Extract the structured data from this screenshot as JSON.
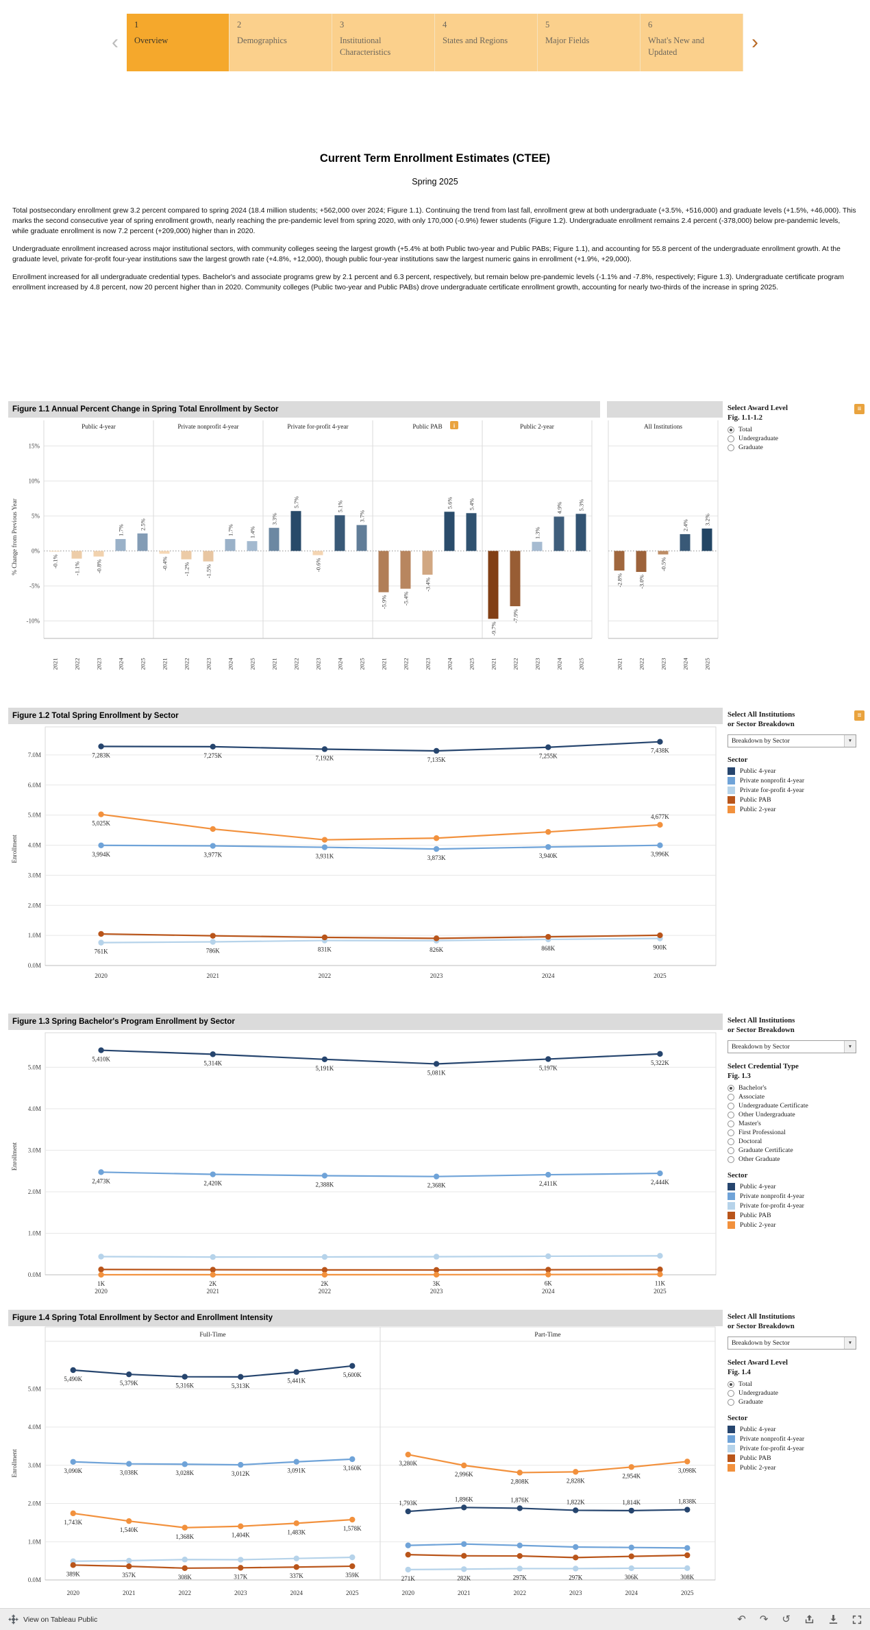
{
  "nav": {
    "prev_label": "‹",
    "next_label": "›",
    "tabs": [
      {
        "number": "1",
        "label": "Overview",
        "active": true
      },
      {
        "number": "2",
        "label": "Demographics",
        "active": false
      },
      {
        "number": "3",
        "label": "Institutional Characteristics",
        "active": false
      },
      {
        "number": "4",
        "label": "States and Regions",
        "active": false
      },
      {
        "number": "5",
        "label": "Major Fields",
        "active": false
      },
      {
        "number": "6",
        "label": "What's New and Updated",
        "active": false
      }
    ]
  },
  "header": {
    "title": "Current Term Enrollment Estimates (CTEE)",
    "subtitle": "Spring 2025"
  },
  "paragraphs": [
    "Total postsecondary enrollment grew 3.2 percent compared to spring 2024 (18.4 million students; +562,000 over 2024; Figure 1.1). Continuing the trend from last fall, enrollment grew at both undergraduate (+3.5%, +516,000) and graduate levels (+1.5%, +46,000). This marks the second consecutive year of spring enrollment growth, nearly reaching the pre-pandemic level from spring 2020, with only 170,000 (-0.9%) fewer students (Figure 1.2). Undergraduate enrollment remains 2.4 percent (-378,000) below pre-pandemic levels, while graduate enrollment is now 7.2 percent (+209,000) higher than in 2020.",
    "Undergraduate enrollment increased across major institutional sectors, with community colleges seeing the largest growth (+5.4% at both Public two-year and Public PABs; Figure 1.1), and accounting for 55.8 percent of the undergraduate enrollment growth. At the graduate level, private for-profit four-year institutions saw the largest growth rate (+4.8%, +12,000), though public four-year institutions saw the largest numeric gains in enrollment (+1.9%, +29,000).",
    "Enrollment increased for all undergraduate credential types. Bachelor's and associate programs grew by 2.1 percent and 6.3 percent, respectively, but remain below pre-pandemic levels (-1.1% and -7.8%, respectively; Figure 1.3). Undergraduate certificate program enrollment increased by 4.8 percent, now 20 percent higher than in 2020. Community colleges (Public two-year and Public PABs) drove undergraduate certificate enrollment growth, accounting for nearly two-thirds of the increase in spring 2025."
  ],
  "colors": {
    "accent_orange": "#F5A82C",
    "tab_inactive": "#FBD08C",
    "titlebar_gray": "#DBDBDB",
    "sector": {
      "Public 4-year": "#26456E",
      "Private nonprofit 4-year": "#6FA3D8",
      "Private for-profit 4-year": "#B6D3EA",
      "Public PAB": "#B9551A",
      "Public 2-year": "#F2913D"
    }
  },
  "controls": {
    "fig11": {
      "title_line1": "Select Award Level",
      "title_line2": "Fig. 1.1-1.2",
      "options": [
        "Total",
        "Undergraduate",
        "Graduate"
      ],
      "selected": "Total"
    },
    "fig12": {
      "title_line1": "Select All Institutions",
      "title_line2": "or Sector Breakdown",
      "dropdown_value": "Breakdown by Sector",
      "legend_title": "Sector"
    },
    "fig13": {
      "title_line1": "Select All Institutions",
      "title_line2": "or Sector Breakdown",
      "dropdown_value": "Breakdown by Sector",
      "credential_title_line1": "Select Credential Type",
      "credential_title_line2": "Fig. 1.3",
      "credential_options": [
        "Bachelor's",
        "Associate",
        "Undergraduate Certificate",
        "Other Undergraduate",
        "Master's",
        "First Professional",
        "Doctoral",
        "Graduate Certificate",
        "Other Graduate"
      ],
      "credential_selected": "Bachelor's",
      "legend_title": "Sector"
    },
    "fig14": {
      "title_line1": "Select All Institutions",
      "title_line2": "or Sector Breakdown",
      "dropdown_value": "Breakdown by Sector",
      "award_title_line1": "Select Award Level",
      "award_title_line2": "Fig. 1.4",
      "award_options": [
        "Total",
        "Undergraduate",
        "Graduate"
      ],
      "award_selected": "Total",
      "legend_title": "Sector"
    },
    "sector_legend": [
      "Public 4-year",
      "Private nonprofit 4-year",
      "Private for-profit 4-year",
      "Public PAB",
      "Public 2-year"
    ]
  },
  "footer": {
    "left_label": "View on Tableau Public",
    "icons": [
      {
        "name": "undo-icon",
        "glyph": "↶"
      },
      {
        "name": "redo-icon",
        "glyph": "↷"
      },
      {
        "name": "reset-icon",
        "glyph": "↺"
      },
      {
        "name": "share-icon",
        "glyph": "svg-share"
      },
      {
        "name": "download-icon",
        "glyph": "svg-download"
      },
      {
        "name": "fullscreen-icon",
        "glyph": "svg-fullscreen"
      }
    ]
  },
  "chart_data": [
    {
      "id": "fig11",
      "type": "bar",
      "title": "Figure 1.1 Annual Percent Change in Spring Total Enrollment by Sector",
      "ylabel": "% Change from Previous Year",
      "x": [
        "2021",
        "2022",
        "2023",
        "2024",
        "2025"
      ],
      "ylim": [
        -12.5,
        16.5
      ],
      "yticks": [
        {
          "v": 15,
          "label": "15%"
        },
        {
          "v": 10,
          "label": "10%"
        },
        {
          "v": 5,
          "label": "5%"
        },
        {
          "v": 0,
          "label": "0%"
        },
        {
          "v": -5,
          "label": "-5%"
        },
        {
          "v": -10,
          "label": "-10%"
        }
      ],
      "panels": [
        {
          "name": "Public 4-year",
          "values": [
            -0.1,
            -1.1,
            -0.8,
            1.7,
            2.5
          ]
        },
        {
          "name": "Private nonprofit 4-year",
          "values": [
            -0.4,
            -1.2,
            -1.5,
            1.7,
            1.4
          ]
        },
        {
          "name": "Private for-profit 4-year",
          "values": [
            3.3,
            5.7,
            -0.6,
            5.1,
            3.7
          ]
        },
        {
          "name": "Public PAB",
          "info_badge": true,
          "values": [
            -5.9,
            -5.4,
            -3.4,
            5.6,
            5.4
          ]
        },
        {
          "name": "Public 2-year",
          "values": [
            -9.7,
            -7.9,
            1.3,
            4.9,
            5.3
          ]
        },
        {
          "name": "All Institutions",
          "separate": true,
          "dark": true,
          "values": [
            -2.8,
            -3.0,
            -0.5,
            2.4,
            3.2
          ]
        }
      ]
    },
    {
      "id": "fig12",
      "type": "line",
      "title": "Figure 1.2 Total Spring Enrollment by Sector",
      "ylabel": "Enrollment",
      "x": [
        "2020",
        "2021",
        "2022",
        "2023",
        "2024",
        "2025"
      ],
      "ylim": [
        0,
        7750
      ],
      "yticks": [
        {
          "v": 0,
          "label": "0.0M"
        },
        {
          "v": 1000,
          "label": "1.0M"
        },
        {
          "v": 2000,
          "label": "2.0M"
        },
        {
          "v": 3000,
          "label": "3.0M"
        },
        {
          "v": 4000,
          "label": "4.0M"
        },
        {
          "v": 5000,
          "label": "5.0M"
        },
        {
          "v": 6000,
          "label": "6.0M"
        },
        {
          "v": 7000,
          "label": "7.0M"
        }
      ],
      "panels": [
        {
          "series": [
            {
              "sector": "Private for-profit 4-year",
              "values": [
                761,
                786,
                831,
                826,
                868,
                900
              ],
              "labels": [
                "761K",
                "786K",
                "831K",
                "826K",
                "868K",
                "900K"
              ],
              "label_pos": "below"
            },
            {
              "sector": "Public PAB",
              "values": [
                1050,
                988,
                935,
                903,
                954,
                1005
              ],
              "estimated": true
            },
            {
              "sector": "Private nonprofit 4-year",
              "values": [
                3994,
                3977,
                3931,
                3873,
                3940,
                3996
              ],
              "labels": [
                "3,994K",
                "3,977K",
                "3,931K",
                "3,873K",
                "3,940K",
                "3,996K"
              ],
              "label_pos": "below"
            },
            {
              "sector": "Public 2-year",
              "values": [
                5025,
                4538,
                4179,
                4234,
                4441,
                4677
              ],
              "labels": [
                "5,025K",
                "",
                "",
                "",
                "",
                "4,677K"
              ],
              "label_pos": [
                "below",
                "",
                "",
                "",
                "",
                "above"
              ]
            },
            {
              "sector": "Public 4-year",
              "values": [
                7283,
                7275,
                7192,
                7135,
                7255,
                7438
              ],
              "labels": [
                "7,283K",
                "7,275K",
                "7,192K",
                "7,135K",
                "7,255K",
                "7,438K"
              ],
              "label_pos": "below"
            }
          ]
        }
      ]
    },
    {
      "id": "fig13",
      "type": "line",
      "title": "Figure 1.3 Spring Bachelor's Program Enrollment by Sector",
      "ylabel": "Enrollment",
      "x": [
        "2020",
        "2021",
        "2022",
        "2023",
        "2024",
        "2025"
      ],
      "ylim": [
        0,
        5700
      ],
      "yticks": [
        {
          "v": 0,
          "label": "0.0M"
        },
        {
          "v": 1000,
          "label": "1.0M"
        },
        {
          "v": 2000,
          "label": "2.0M"
        },
        {
          "v": 3000,
          "label": "3.0M"
        },
        {
          "v": 4000,
          "label": "4.0M"
        },
        {
          "v": 5000,
          "label": "5.0M"
        }
      ],
      "panels": [
        {
          "series": [
            {
              "sector": "Private for-profit 4-year",
              "values": [
                438,
                428,
                430,
                436,
                447,
                457
              ],
              "estimated": true
            },
            {
              "sector": "Public PAB",
              "values": [
                128,
                122,
                118,
                116,
                122,
                128
              ],
              "estimated": true
            },
            {
              "sector": "Public 2-year",
              "values": [
                1,
                2,
                2,
                3,
                6,
                11
              ],
              "labels": [
                "1K",
                "2K",
                "2K",
                "3K",
                "6K",
                "11K"
              ],
              "label_pos": "below"
            },
            {
              "sector": "Private nonprofit 4-year",
              "values": [
                2473,
                2420,
                2388,
                2368,
                2411,
                2444
              ],
              "labels": [
                "2,473K",
                "2,420K",
                "2,388K",
                "2,368K",
                "2,411K",
                "2,444K"
              ],
              "label_pos": "below"
            },
            {
              "sector": "Public 4-year",
              "values": [
                5410,
                5314,
                5191,
                5081,
                5197,
                5322
              ],
              "labels": [
                "5,410K",
                "5,314K",
                "5,191K",
                "5,081K",
                "5,197K",
                "5,322K"
              ],
              "label_pos": "below"
            }
          ]
        }
      ]
    },
    {
      "id": "fig14",
      "type": "line",
      "title": "Figure 1.4 Spring Total Enrollment by Sector and Enrollment Intensity",
      "ylabel": "Enrollment",
      "x": [
        "2020",
        "2021",
        "2022",
        "2023",
        "2024",
        "2025"
      ],
      "ylim": [
        0,
        6100
      ],
      "yticks": [
        {
          "v": 0,
          "label": "0.0M"
        },
        {
          "v": 1000,
          "label": "1.0M"
        },
        {
          "v": 2000,
          "label": "2.0M"
        },
        {
          "v": 3000,
          "label": "3.0M"
        },
        {
          "v": 4000,
          "label": "4.0M"
        },
        {
          "v": 5000,
          "label": "5.0M"
        }
      ],
      "panels": [
        {
          "name": "Full-Time",
          "series": [
            {
              "sector": "Private for-profit 4-year",
              "values": [
                490,
                504,
                534,
                529,
                562,
                592
              ],
              "estimated": true
            },
            {
              "sector": "Public PAB",
              "values": [
                389,
                357,
                308,
                317,
                337,
                359
              ],
              "labels": [
                "389K",
                "357K",
                "308K",
                "317K",
                "337K",
                "359K"
              ],
              "label_pos": "below"
            },
            {
              "sector": "Public 2-year",
              "values": [
                1743,
                1540,
                1368,
                1404,
                1483,
                1578
              ],
              "labels": [
                "1,743K",
                "1,540K",
                "1,368K",
                "1,404K",
                "1,483K",
                "1,578K"
              ],
              "label_pos": "below"
            },
            {
              "sector": "Private nonprofit 4-year",
              "values": [
                3090,
                3038,
                3028,
                3012,
                3091,
                3160
              ],
              "labels": [
                "3,090K",
                "3,038K",
                "3,028K",
                "3,012K",
                "3,091K",
                "3,160K"
              ],
              "label_pos": "below"
            },
            {
              "sector": "Public 4-year",
              "values": [
                5490,
                5379,
                5316,
                5313,
                5441,
                5600
              ],
              "labels": [
                "5,490K",
                "5,379K",
                "5,316K",
                "5,313K",
                "5,441K",
                "5,600K"
              ],
              "label_pos": "below"
            }
          ]
        },
        {
          "name": "Part-Time",
          "series": [
            {
              "sector": "Private nonprofit 4-year",
              "values": [
                904,
                939,
                903,
                861,
                849,
                836
              ],
              "estimated": true
            },
            {
              "sector": "Public PAB",
              "values": [
                661,
                631,
                627,
                586,
                617,
                646
              ],
              "estimated": true
            },
            {
              "sector": "Private for-profit 4-year",
              "values": [
                271,
                282,
                297,
                297,
                306,
                308
              ],
              "labels": [
                "271K",
                "282K",
                "297K",
                "297K",
                "306K",
                "308K"
              ],
              "label_pos": "below"
            },
            {
              "sector": "Public 4-year",
              "values": [
                1793,
                1896,
                1876,
                1822,
                1814,
                1838
              ],
              "labels": [
                "1,793K",
                "1,896K",
                "1,876K",
                "1,822K",
                "1,814K",
                "1,838K"
              ],
              "label_pos": "above"
            },
            {
              "sector": "Public 2-year",
              "values": [
                3280,
                2996,
                2808,
                2828,
                2954,
                3098
              ],
              "labels": [
                "3,280K",
                "2,996K",
                "2,808K",
                "2,828K",
                "2,954K",
                "3,098K"
              ],
              "label_pos": "below"
            }
          ]
        }
      ]
    }
  ]
}
